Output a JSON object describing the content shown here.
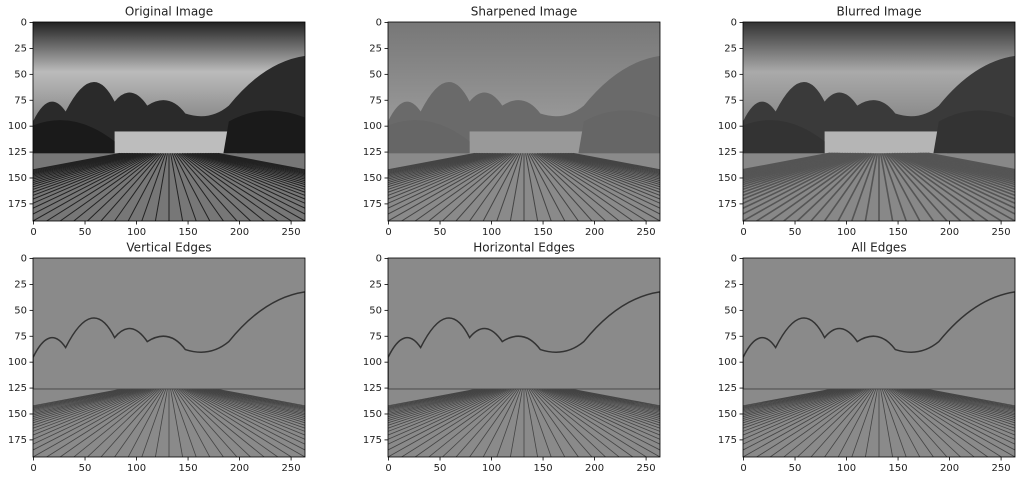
{
  "chart_data": [
    {
      "type": "image",
      "title": "Original Image",
      "style": "original",
      "xlim": [
        -0.5,
        263.5
      ],
      "ylim": [
        191.5,
        -0.5
      ],
      "xticks": [
        0,
        50,
        100,
        150,
        200,
        250
      ],
      "yticks": [
        0,
        25,
        50,
        75,
        100,
        125,
        150,
        175
      ]
    },
    {
      "type": "image",
      "title": "Sharpened Image",
      "style": "sharpened",
      "xlim": [
        -0.5,
        263.5
      ],
      "ylim": [
        191.5,
        -0.5
      ],
      "xticks": [
        0,
        50,
        100,
        150,
        200,
        250
      ],
      "yticks": [
        0,
        25,
        50,
        75,
        100,
        125,
        150,
        175
      ]
    },
    {
      "type": "image",
      "title": "Blurred Image",
      "style": "blurred",
      "xlim": [
        -0.5,
        263.5
      ],
      "ylim": [
        191.5,
        -0.5
      ],
      "xticks": [
        0,
        50,
        100,
        150,
        200,
        250
      ],
      "yticks": [
        0,
        25,
        50,
        75,
        100,
        125,
        150,
        175
      ]
    },
    {
      "type": "image",
      "title": "Vertical Edges",
      "style": "edges",
      "xlim": [
        -0.5,
        263.5
      ],
      "ylim": [
        191.5,
        -0.5
      ],
      "xticks": [
        0,
        50,
        100,
        150,
        200,
        250
      ],
      "yticks": [
        0,
        25,
        50,
        75,
        100,
        125,
        150,
        175
      ]
    },
    {
      "type": "image",
      "title": "Horizontal Edges",
      "style": "edges",
      "xlim": [
        -0.5,
        263.5
      ],
      "ylim": [
        191.5,
        -0.5
      ],
      "xticks": [
        0,
        50,
        100,
        150,
        200,
        250
      ],
      "yticks": [
        0,
        25,
        50,
        75,
        100,
        125,
        150,
        175
      ]
    },
    {
      "type": "image",
      "title": "All Edges",
      "style": "edges",
      "xlim": [
        -0.5,
        263.5
      ],
      "ylim": [
        191.5,
        -0.5
      ],
      "xticks": [
        0,
        50,
        100,
        150,
        200,
        250
      ],
      "yticks": [
        0,
        25,
        50,
        75,
        100,
        125,
        150,
        175
      ]
    }
  ]
}
